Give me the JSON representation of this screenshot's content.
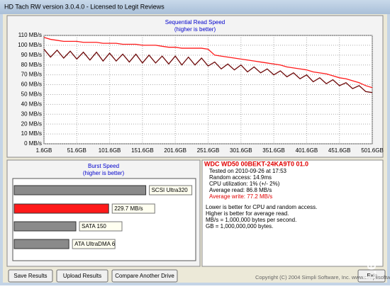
{
  "window": {
    "title": "HD Tach RW version 3.0.4.0 - Licensed to Legit Reviews"
  },
  "chart_data": [
    {
      "type": "line",
      "title": "Sequential Read Speed",
      "subtitle": "(higher is better)",
      "x": [
        1.6,
        11.6,
        21.6,
        31.6,
        41.6,
        51.6,
        61.6,
        71.6,
        81.6,
        91.6,
        101.6,
        111.6,
        121.6,
        131.6,
        141.6,
        151.6,
        161.6,
        171.6,
        181.6,
        191.6,
        201.6,
        211.6,
        221.6,
        231.6,
        241.6,
        251.6,
        261.6,
        271.6,
        281.6,
        291.6,
        301.6,
        311.6,
        321.6,
        331.6,
        341.6,
        351.6,
        361.6,
        371.6,
        381.6,
        391.6,
        401.6,
        411.6,
        421.6,
        431.6,
        441.6,
        451.6,
        461.6,
        471.6,
        481.6,
        491.6,
        501.6
      ],
      "xlim": [
        1.6,
        501.6
      ],
      "xticks": [
        {
          "value": 1.6,
          "label": "1.6GB"
        },
        {
          "value": 51.6,
          "label": "51.6GB"
        },
        {
          "value": 101.6,
          "label": "101.6GB"
        },
        {
          "value": 151.6,
          "label": "151.6GB"
        },
        {
          "value": 201.6,
          "label": "201.6GB"
        },
        {
          "value": 251.6,
          "label": "251.6GB"
        },
        {
          "value": 301.6,
          "label": "301.6GB"
        },
        {
          "value": 351.6,
          "label": "351.6GB"
        },
        {
          "value": 401.6,
          "label": "401.6GB"
        },
        {
          "value": 451.6,
          "label": "451.6GB"
        },
        {
          "value": 501.6,
          "label": "501.6GB"
        }
      ],
      "ylim": [
        0,
        110
      ],
      "yticks": [
        {
          "value": 0,
          "label": "0 MB/s"
        },
        {
          "value": 10,
          "label": "10 MB/s"
        },
        {
          "value": 20,
          "label": "20 MB/s"
        },
        {
          "value": 30,
          "label": "30 MB/s"
        },
        {
          "value": 40,
          "label": "40 MB/s"
        },
        {
          "value": 50,
          "label": "50 MB/s"
        },
        {
          "value": 60,
          "label": "60 MB/s"
        },
        {
          "value": 70,
          "label": "70 MB/s"
        },
        {
          "value": 80,
          "label": "80 MB/s"
        },
        {
          "value": 90,
          "label": "90 MB/s"
        },
        {
          "value": 100,
          "label": "100 MB/s"
        },
        {
          "value": 110,
          "label": "110 MB/s"
        }
      ],
      "grid": true,
      "series": [
        {
          "color": "#ff1a1a",
          "values": [
            108,
            106,
            105,
            104,
            104,
            104,
            103,
            103,
            103,
            102,
            102,
            102,
            101,
            101,
            101,
            100,
            100,
            100,
            99,
            98,
            98,
            97,
            97,
            97,
            97,
            96,
            90,
            89,
            88,
            87,
            86,
            85,
            84,
            83,
            82,
            81,
            80,
            78,
            77,
            76,
            75,
            73,
            72,
            71,
            69,
            67,
            66,
            64,
            62,
            59,
            57
          ]
        },
        {
          "color": "#6e0a0a",
          "values": [
            96,
            88,
            95,
            87,
            94,
            86,
            93,
            85,
            93,
            84,
            92,
            84,
            91,
            83,
            91,
            82,
            90,
            82,
            89,
            81,
            89,
            80,
            88,
            80,
            87,
            79,
            83,
            76,
            81,
            75,
            80,
            73,
            78,
            72,
            76,
            70,
            74,
            68,
            72,
            66,
            70,
            63,
            67,
            61,
            65,
            59,
            62,
            56,
            59,
            53,
            52
          ]
        }
      ]
    },
    {
      "type": "hbar",
      "title": "Burst Speed",
      "subtitle": "(higher is better)",
      "categories": [
        "SCSI Ultra320",
        null,
        "SATA 150",
        "ATA UltraDMA 6"
      ],
      "values": [
        320,
        229.7,
        150,
        133
      ],
      "value_labels": [
        null,
        "229.7 MB/s",
        null,
        null
      ],
      "colors": [
        "#8a8a8a",
        "#ff1a1a",
        "#8a8a8a",
        "#8a8a8a"
      ],
      "xlim": [
        0,
        400
      ]
    }
  ],
  "info": {
    "drive": "WDC WD50 00BEKT-24KA9T0 01.0",
    "lines": [
      "Tested on 2010-09-26 at 17:53",
      "Random access: 14.9ms",
      "CPU utilization: 1% (+/- 2%)",
      "Average read: 86.8 MB/s",
      "Average write: 77.2 MB/s"
    ],
    "notes": [
      "Lower is better for CPU and random access.",
      "Higher is better for average read.",
      "MB/s = 1,000,000 bytes per second.",
      "GB = 1,000,000,000 bytes."
    ]
  },
  "buttons": [
    "Save Results",
    "Upload Results",
    "Compare Another Drive",
    "Exit"
  ],
  "copyright": "Copyright (C) 2004 Simpli Software, Inc. www.simplisoftware.com",
  "watermark": "LegitReviews"
}
